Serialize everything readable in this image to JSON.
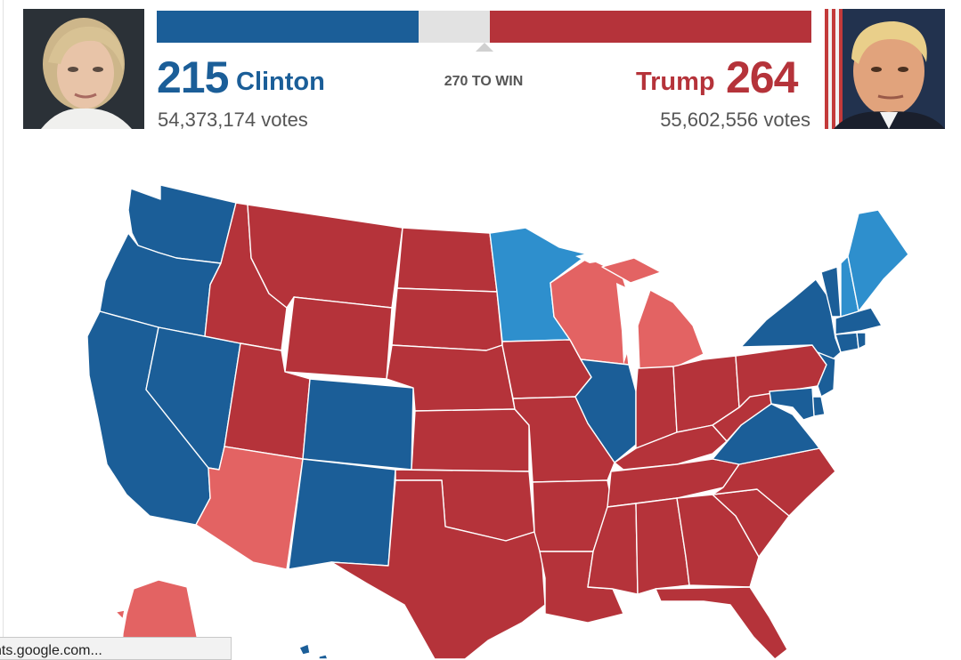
{
  "colors": {
    "dem_solid": "#1b5e98",
    "dem_lean": "#2e8fcd",
    "rep_solid": "#b5333a",
    "rep_lean": "#e36363",
    "uncalled": "#e2e2e2"
  },
  "header": {
    "clinton": {
      "ev": "215",
      "name": "Clinton",
      "votes": "54,373,174 votes",
      "photo": "hillary-clinton-photo"
    },
    "trump": {
      "ev": "264",
      "name": "Trump",
      "votes": "55,602,556 votes",
      "photo": "donald-trump-photo"
    },
    "threshold_label": "270 TO WIN",
    "threshold": 270,
    "total_ev": 538,
    "ev_values": {
      "clinton": 215,
      "trump": 264
    }
  },
  "map": {
    "states": {
      "WA": "dem_solid",
      "OR": "dem_solid",
      "CA": "dem_solid",
      "NV": "dem_solid",
      "ID": "rep_solid",
      "MT": "rep_solid",
      "WY": "rep_solid",
      "UT": "rep_solid",
      "AZ": "rep_lean",
      "CO": "dem_solid",
      "NM": "dem_solid",
      "ND": "rep_solid",
      "SD": "rep_solid",
      "NE": "rep_solid",
      "KS": "rep_solid",
      "OK": "rep_solid",
      "TX": "rep_solid",
      "MN": "dem_lean",
      "IA": "rep_solid",
      "MO": "rep_solid",
      "AR": "rep_solid",
      "LA": "rep_solid",
      "WI": "rep_lean",
      "IL": "dem_solid",
      "MI": "rep_lean",
      "IN": "rep_solid",
      "OH": "rep_solid",
      "KY": "rep_solid",
      "TN": "rep_solid",
      "MS": "rep_solid",
      "AL": "rep_solid",
      "GA": "rep_solid",
      "FL": "rep_solid",
      "SC": "rep_solid",
      "NC": "rep_solid",
      "VA": "dem_solid",
      "WV": "rep_solid",
      "PA": "rep_solid",
      "NY": "dem_solid",
      "NJ": "dem_solid",
      "DE": "dem_solid",
      "MD": "dem_solid",
      "VT": "dem_solid",
      "NH": "dem_lean",
      "ME": "dem_lean",
      "MA": "dem_solid",
      "CT": "dem_solid",
      "RI": "dem_solid",
      "AK": "rep_lean",
      "HI": "dem_solid"
    }
  },
  "status_bar": {
    "text": "nts.google.com..."
  }
}
